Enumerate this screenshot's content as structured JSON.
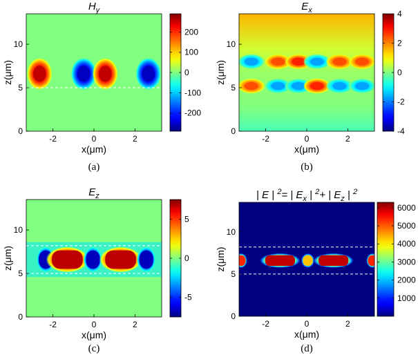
{
  "chart_data": [
    {
      "type": "heatmap",
      "panel": "a",
      "title_parts": [
        {
          "t": "H",
          "sub": "y"
        }
      ],
      "caption": "(a)",
      "xlabel": "x(μm)",
      "ylabel": "z(μm)",
      "xlim": [
        -3.3,
        3.3
      ],
      "ylim": [
        0,
        13.5
      ],
      "xticks": [
        "-2",
        "0",
        "2"
      ],
      "xtick_values": [
        -2,
        0,
        2
      ],
      "yticks": [
        "0",
        "5",
        "10"
      ],
      "ytick_values": [
        0,
        5,
        10
      ],
      "colorbar": {
        "min": -290,
        "max": 290,
        "ticks": [
          "200",
          "100",
          "0",
          "-100",
          "-200"
        ],
        "tick_values": [
          200,
          100,
          0,
          -100,
          -200
        ]
      },
      "background_value": 0,
      "blobs": [
        {
          "x": -2.65,
          "z": 6.6,
          "value": 270
        },
        {
          "x": -0.5,
          "z": 6.6,
          "value": -270
        },
        {
          "x": 0.55,
          "z": 6.6,
          "value": 270
        },
        {
          "x": 2.65,
          "z": 6.6,
          "value": -270
        }
      ],
      "guide_lines_z": [
        5.0
      ]
    },
    {
      "type": "heatmap",
      "panel": "b",
      "title_parts": [
        {
          "t": "E",
          "sub": "x"
        }
      ],
      "caption": "(b)",
      "xlabel": "x(μm)",
      "ylabel": "z(μm)",
      "xlim": [
        -3.3,
        3.3
      ],
      "ylim": [
        0,
        13.5
      ],
      "xticks": [
        "-2",
        "0",
        "2"
      ],
      "xtick_values": [
        -2,
        0,
        2
      ],
      "yticks": [
        "0",
        "5",
        "10"
      ],
      "ytick_values": [
        0,
        5,
        10
      ],
      "colorbar": {
        "min": -4,
        "max": 4,
        "ticks": [
          "4",
          "2",
          "0",
          "-2",
          "-4"
        ],
        "tick_values": [
          4,
          2,
          0,
          -2,
          -4
        ]
      },
      "background_value": 0.3,
      "blobs": [
        {
          "x": -2.7,
          "z": 8.0,
          "value": -1.8
        },
        {
          "x": -2.7,
          "z": 5.2,
          "value": 2.6
        },
        {
          "x": -1.4,
          "z": 8.0,
          "value": 2.6
        },
        {
          "x": -1.4,
          "z": 5.2,
          "value": -1.8
        },
        {
          "x": -0.4,
          "z": 8.0,
          "value": 3.0
        },
        {
          "x": -0.4,
          "z": 5.2,
          "value": -1.8
        },
        {
          "x": 0.5,
          "z": 8.0,
          "value": -1.8
        },
        {
          "x": 0.5,
          "z": 5.2,
          "value": 3.0
        },
        {
          "x": 1.6,
          "z": 8.0,
          "value": 2.6
        },
        {
          "x": 1.6,
          "z": 5.2,
          "value": -1.8
        },
        {
          "x": 2.7,
          "z": 8.0,
          "value": 2.6
        },
        {
          "x": 2.7,
          "z": 5.2,
          "value": -1.8
        }
      ],
      "guide_lines_z": []
    },
    {
      "type": "heatmap",
      "panel": "c",
      "title_parts": [
        {
          "t": "E",
          "sub": "z"
        }
      ],
      "caption": "(c)",
      "xlabel": "x(μm)",
      "ylabel": "z(μm)",
      "xlim": [
        -3.3,
        3.3
      ],
      "ylim": [
        0,
        13.5
      ],
      "xticks": [
        "-2",
        "0",
        "2"
      ],
      "xtick_values": [
        -2,
        0,
        2
      ],
      "yticks": [
        "0",
        "5",
        "10"
      ],
      "ytick_values": [
        0,
        5,
        10
      ],
      "colorbar": {
        "min": -7.5,
        "max": 7.5,
        "ticks": [
          "5",
          "0",
          "-5"
        ],
        "tick_values": [
          5,
          0,
          -5
        ]
      },
      "background_value": 0,
      "blobs": [
        {
          "x": -2.35,
          "z": 6.6,
          "value": -7.0
        },
        {
          "x": -1.3,
          "z": 6.6,
          "value": 7.0
        },
        {
          "x": -0.05,
          "z": 6.6,
          "value": -7.0
        },
        {
          "x": 1.3,
          "z": 6.6,
          "value": 7.0
        },
        {
          "x": 2.55,
          "z": 6.6,
          "value": -7.0
        }
      ],
      "guide_lines_z": [
        5.0,
        8.2
      ]
    },
    {
      "type": "heatmap",
      "panel": "d",
      "title_parts": [
        {
          "t": "| E | "
        },
        {
          "t": "",
          "sup": "2"
        },
        {
          "t": "= | E"
        },
        {
          "t": "",
          "sub": "x"
        },
        {
          "t": " | "
        },
        {
          "t": "",
          "sup": "2"
        },
        {
          "t": "+ | E"
        },
        {
          "t": "",
          "sub": "z"
        },
        {
          "t": " | "
        },
        {
          "t": "",
          "sup": "2"
        }
      ],
      "caption": "(d)",
      "xlabel": "x(μm)",
      "ylabel": "z(μm)",
      "xlim": [
        -3.3,
        3.3
      ],
      "ylim": [
        0,
        13.5
      ],
      "xticks": [
        "-2",
        "0",
        "2"
      ],
      "xtick_values": [
        -2,
        0,
        2
      ],
      "yticks": [
        "0",
        "5",
        "10"
      ],
      "ytick_values": [
        0,
        5,
        10
      ],
      "colorbar": {
        "min": 0,
        "max": 6300,
        "ticks": [
          "6000",
          "5000",
          "4000",
          "3000",
          "2000",
          "1000"
        ],
        "tick_values": [
          6000,
          5000,
          4000,
          3000,
          2000,
          1000
        ]
      },
      "background_value": 0,
      "blobs": [
        {
          "x": -3.2,
          "z": 6.6,
          "value": 5600
        },
        {
          "x": -1.3,
          "z": 6.6,
          "value": 6200
        },
        {
          "x": 0.05,
          "z": 6.6,
          "value": 4500
        },
        {
          "x": 1.3,
          "z": 6.6,
          "value": 6200
        },
        {
          "x": 3.2,
          "z": 6.6,
          "value": 5600
        }
      ],
      "guide_lines_z": [
        5.0,
        8.2
      ]
    }
  ]
}
